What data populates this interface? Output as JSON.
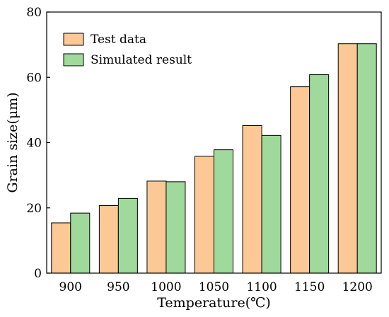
{
  "colors": {
    "test": "#fbc896",
    "simulated": "#9fd99b",
    "stroke": "#000000"
  },
  "chart_data": {
    "type": "bar",
    "categories": [
      "900",
      "950",
      "1000",
      "1050",
      "1100",
      "1150",
      "1200"
    ],
    "series": [
      {
        "name": "Test data",
        "color": "#fbc896",
        "values": [
          15.4,
          20.7,
          28.2,
          35.8,
          45.2,
          57.1,
          70.3
        ]
      },
      {
        "name": "Simulated result",
        "color": "#9fd99b",
        "values": [
          18.4,
          22.9,
          28.0,
          37.8,
          42.2,
          60.8,
          70.3
        ]
      }
    ],
    "title": "",
    "xlabel": "Temperature(℃)",
    "ylabel": "Grain size(μm)",
    "ylim": [
      0,
      80
    ],
    "yticks": [
      "0",
      "20",
      "40",
      "60",
      "80"
    ],
    "grid": false,
    "legend_position": "top-left"
  }
}
